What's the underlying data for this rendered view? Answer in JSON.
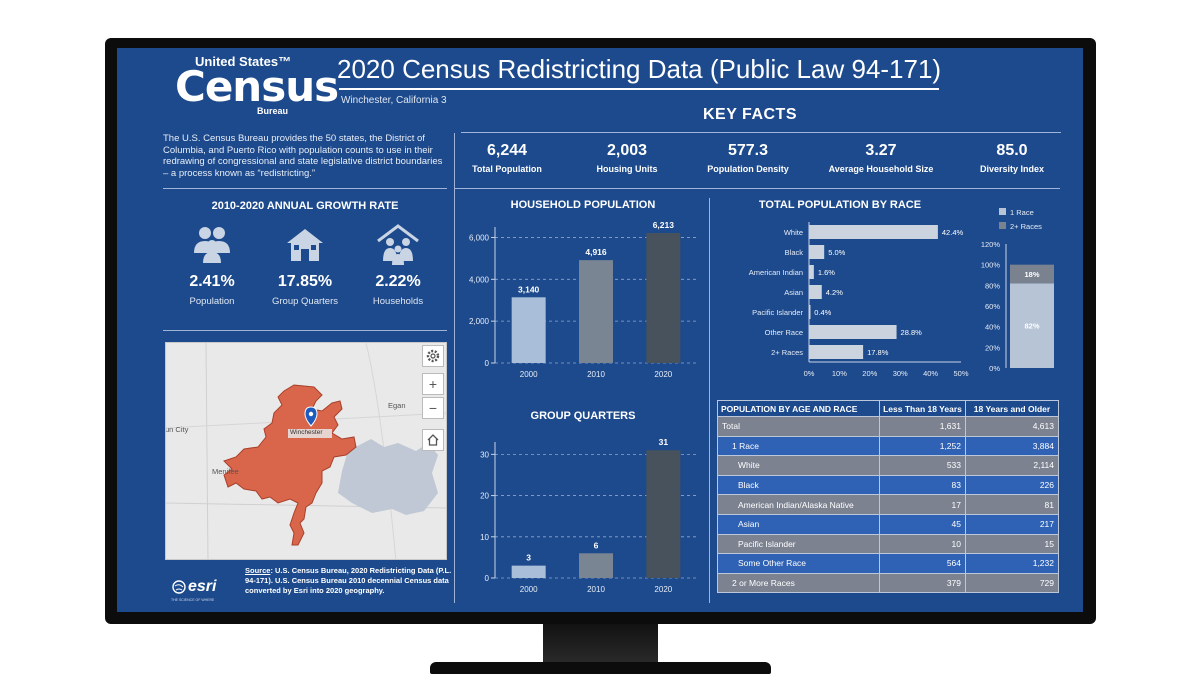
{
  "header": {
    "logo_top": "United States™",
    "logo_main": "Census",
    "logo_bottom": "Bureau",
    "title": "2020 Census Redistricting Data (Public Law 94-171)",
    "subtitle": "Winchester, California 3"
  },
  "intro": "The U.S. Census Bureau provides the 50 states, the District of Columbia, and Puerto Rico with population counts to use in their redrawing of congressional and state legislative district boundaries – a process known as “redistricting.”",
  "key_facts": {
    "heading": "KEY FACTS",
    "items": [
      {
        "value": "6,244",
        "label": "Total Population"
      },
      {
        "value": "2,003",
        "label": "Housing Units"
      },
      {
        "value": "577.3",
        "label": "Population Density"
      },
      {
        "value": "3.27",
        "label": "Average Household Size"
      },
      {
        "value": "85.0",
        "label": "Diversity Index"
      }
    ]
  },
  "growth": {
    "heading": "2010-2020 ANNUAL GROWTH RATE",
    "items": [
      {
        "value": "2.41%",
        "label": "Population",
        "icon": "people-icon"
      },
      {
        "value": "17.85%",
        "label": "Group Quarters",
        "icon": "house-icon"
      },
      {
        "value": "2.22%",
        "label": "Households",
        "icon": "household-icon"
      }
    ]
  },
  "map": {
    "labels": {
      "egan": "Egan",
      "sun_city": "Sun City",
      "menifee": "Menifee",
      "winchester": "Winchester"
    },
    "zoom_in": "+",
    "zoom_out": "−",
    "colors": {
      "area": "#d9664a",
      "neighbor": "#bfc8d4"
    }
  },
  "source": {
    "label": "Source",
    "text": ": U.S. Census Bureau, 2020 Redistricting Data (P.L. 94-171). U.S. Census Bureau 2010 decennial Census data converted by Esri into 2020 geography."
  },
  "esri": {
    "name": "esri",
    "tagline": "THE SCIENCE OF WHERE"
  },
  "chart_data": [
    {
      "type": "bar",
      "title": "HOUSEHOLD POPULATION",
      "categories": [
        "2000",
        "2010",
        "2020"
      ],
      "values": [
        3140,
        4916,
        6213
      ],
      "value_labels": [
        "3,140",
        "4,916",
        "6,213"
      ],
      "ylim": [
        0,
        6500
      ],
      "yticks": [
        0,
        2000,
        4000,
        6000
      ],
      "ytick_labels": [
        "0",
        "2,000",
        "4,000",
        "6,000"
      ],
      "colors": [
        "#a9bed8",
        "#7a8594",
        "#47525c"
      ]
    },
    {
      "type": "bar",
      "title": "GROUP QUARTERS",
      "categories": [
        "2000",
        "2010",
        "2020"
      ],
      "values": [
        3,
        6,
        31
      ],
      "value_labels": [
        "3",
        "6",
        "31"
      ],
      "ylim": [
        0,
        33
      ],
      "yticks": [
        0,
        10,
        20,
        30
      ],
      "ytick_labels": [
        "0",
        "10",
        "20",
        "30"
      ],
      "colors": [
        "#a9bed8",
        "#7a8594",
        "#47525c"
      ]
    },
    {
      "type": "bar",
      "orientation": "horizontal",
      "title": "TOTAL POPULATION BY RACE",
      "categories": [
        "White",
        "Black",
        "American Indian",
        "Asian",
        "Pacific Islander",
        "Other Race",
        "2+ Races"
      ],
      "values": [
        42.4,
        5.0,
        1.6,
        4.2,
        0.4,
        28.8,
        17.8
      ],
      "value_labels": [
        "42.4%",
        "5.0%",
        "1.6%",
        "4.2%",
        "0.4%",
        "28.8%",
        "17.8%"
      ],
      "xlim": [
        0,
        50
      ],
      "xticks": [
        0,
        10,
        20,
        30,
        40,
        50
      ],
      "xtick_labels": [
        "0%",
        "10%",
        "20%",
        "30%",
        "40%",
        "50%"
      ],
      "color": "#cbd3df"
    },
    {
      "type": "bar",
      "stacked": true,
      "legend": [
        {
          "label": "1 Race",
          "color": "#b6c4d6"
        },
        {
          "label": "2+ Races",
          "color": "#7a8290"
        }
      ],
      "series": [
        {
          "name": "1 Race",
          "values": [
            82
          ]
        },
        {
          "name": "2+ Races",
          "values": [
            18
          ]
        }
      ],
      "value_labels": [
        "82%",
        "18%"
      ],
      "ylim": [
        0,
        120
      ],
      "yticks": [
        0,
        20,
        40,
        60,
        80,
        100,
        120
      ],
      "ytick_labels": [
        "0%",
        "20%",
        "40%",
        "60%",
        "80%",
        "100%",
        "120%"
      ]
    }
  ],
  "age_table": {
    "headers": [
      "POPULATION BY AGE AND RACE",
      "Less Than 18 Years",
      "18 Years and Older"
    ],
    "rows": [
      {
        "label": "Total",
        "under18": "1,631",
        "over18": "4,613",
        "indent": 0,
        "style": "gray"
      },
      {
        "label": "1 Race",
        "under18": "1,252",
        "over18": "3,884",
        "indent": 1,
        "style": "blue"
      },
      {
        "label": "White",
        "under18": "533",
        "over18": "2,114",
        "indent": 2,
        "style": "gray"
      },
      {
        "label": "Black",
        "under18": "83",
        "over18": "226",
        "indent": 2,
        "style": "blue"
      },
      {
        "label": "American Indian/Alaska Native",
        "under18": "17",
        "over18": "81",
        "indent": 2,
        "style": "gray"
      },
      {
        "label": "Asian",
        "under18": "45",
        "over18": "217",
        "indent": 2,
        "style": "blue"
      },
      {
        "label": "Pacific Islander",
        "under18": "10",
        "over18": "15",
        "indent": 2,
        "style": "gray"
      },
      {
        "label": "Some Other Race",
        "under18": "564",
        "over18": "1,232",
        "indent": 2,
        "style": "blue"
      },
      {
        "label": "2 or More Races",
        "under18": "379",
        "over18": "729",
        "indent": 1,
        "style": "gray"
      }
    ]
  }
}
